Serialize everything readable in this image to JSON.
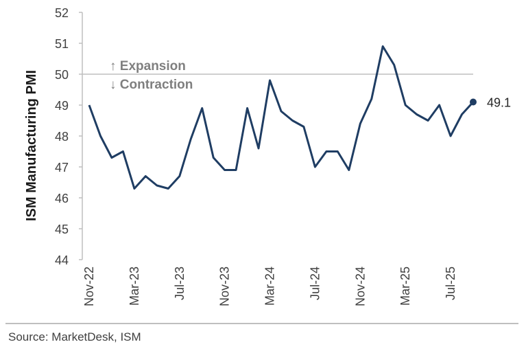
{
  "chart_data": {
    "type": "line",
    "ylabel": "ISM Manufacturing PMI",
    "ylim": [
      44,
      52
    ],
    "yticks": [
      44,
      45,
      46,
      47,
      48,
      49,
      50,
      51,
      52
    ],
    "x_tick_labels": [
      "Nov-22",
      "Mar-23",
      "Jul-23",
      "Nov-23",
      "Mar-24",
      "Jul-24",
      "Nov-24",
      "Mar-25",
      "Jul-25"
    ],
    "reference_line": 50,
    "annotations": {
      "above": "↑ Expansion",
      "below": "↓ Contraction"
    },
    "x": [
      "Nov-22",
      "Dec-22",
      "Jan-23",
      "Feb-23",
      "Mar-23",
      "Apr-23",
      "May-23",
      "Jun-23",
      "Jul-23",
      "Aug-23",
      "Sep-23",
      "Oct-23",
      "Nov-23",
      "Dec-23",
      "Jan-24",
      "Feb-24",
      "Mar-24",
      "Apr-24",
      "May-24",
      "Jun-24",
      "Jul-24",
      "Aug-24",
      "Sep-24",
      "Oct-24",
      "Nov-24",
      "Dec-24",
      "Jan-25",
      "Feb-25",
      "Mar-25",
      "Apr-25",
      "May-25",
      "Jun-25",
      "Jul-25",
      "Aug-25",
      "Sep-25"
    ],
    "series": [
      {
        "name": "ISM Manufacturing PMI",
        "color": "#1f3d63",
        "values": [
          49.0,
          48.0,
          47.3,
          47.5,
          46.3,
          46.7,
          46.4,
          46.3,
          46.7,
          47.9,
          48.9,
          47.3,
          46.9,
          46.9,
          48.9,
          47.6,
          49.8,
          48.8,
          48.5,
          48.3,
          47.0,
          47.5,
          47.5,
          46.9,
          48.4,
          49.2,
          50.9,
          50.3,
          49.0,
          48.7,
          48.5,
          49.0,
          48.0,
          48.7,
          49.1
        ]
      }
    ],
    "last_value_label": "49.1"
  },
  "source": "Source: MarketDesk, ISM"
}
